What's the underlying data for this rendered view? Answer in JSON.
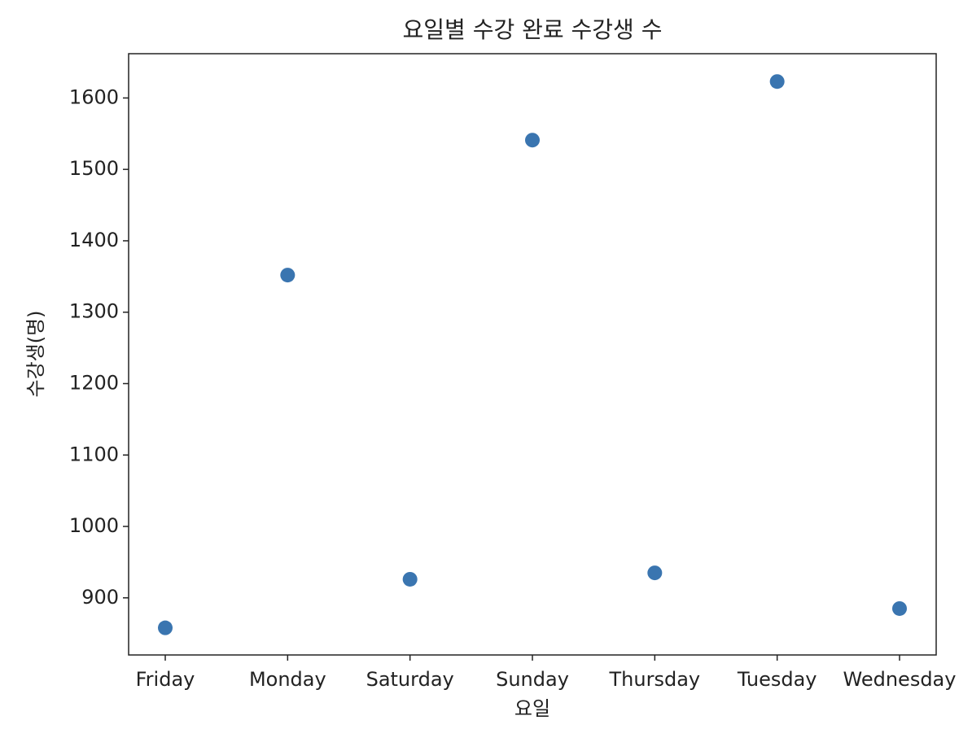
{
  "chart_data": {
    "type": "scatter",
    "title": "요일별 수강 완료 수강생 수",
    "x_label": "요일",
    "y_label": "수강생(명)",
    "categories": [
      "Friday",
      "Monday",
      "Saturday",
      "Sunday",
      "Thursday",
      "Tuesday",
      "Wednesday"
    ],
    "values": [
      858,
      1352,
      926,
      1541,
      935,
      1623,
      885
    ],
    "color": "#3a75b0",
    "ylim": [
      820,
      1662
    ],
    "yticks": [
      900,
      1000,
      1100,
      1200,
      1300,
      1400,
      1500,
      1600
    ],
    "grid": false
  }
}
